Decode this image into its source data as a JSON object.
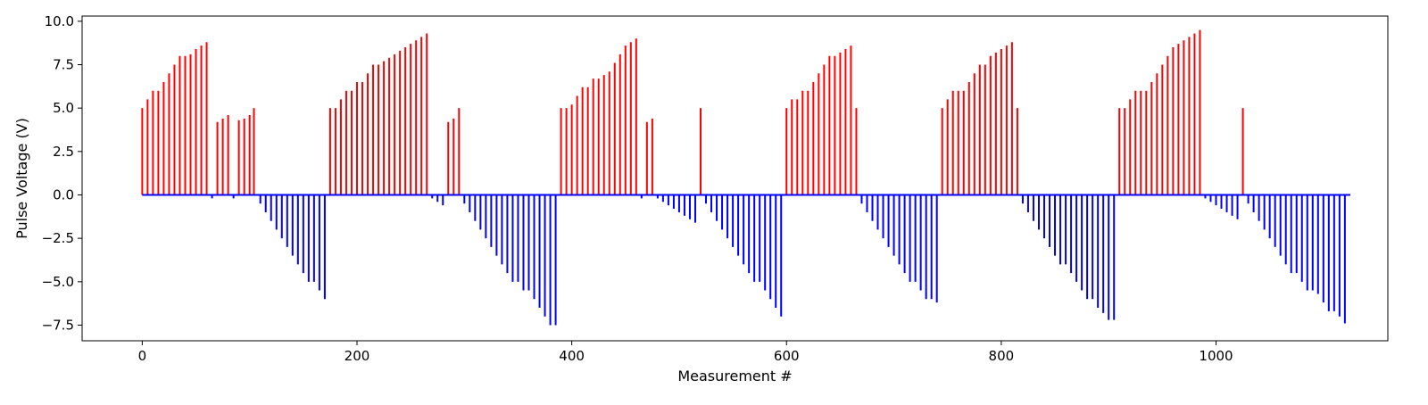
{
  "chart_data": {
    "type": "bar",
    "title": "",
    "xlabel": "Measurement #",
    "ylabel": "Pulse Voltage (V)",
    "xlim": [
      -56,
      1160
    ],
    "ylim": [
      -8.4,
      10.3
    ],
    "xticks": [
      0,
      200,
      400,
      600,
      800,
      1000
    ],
    "yticks": [
      -7.5,
      -5.0,
      -2.5,
      0.0,
      2.5,
      5.0,
      7.5,
      10.0
    ],
    "xtick_labels": [
      "0",
      "200",
      "400",
      "600",
      "800",
      "1000"
    ],
    "ytick_labels": [
      "−7.5",
      "−5.0",
      "−2.5",
      "0.0",
      "2.5",
      "5.0",
      "7.5",
      "10.0"
    ],
    "grid": false,
    "legend": "none",
    "colors": {
      "positive": "#ff0000",
      "negative": "#0000ff"
    },
    "baseline_x_range": [
      0,
      1125
    ],
    "series": [
      {
        "color": "#ff0000",
        "x": [
          0,
          5,
          10,
          15,
          20,
          25,
          30,
          35,
          40,
          45,
          50,
          55,
          60,
          70,
          75,
          80,
          90,
          95,
          100,
          104,
          175,
          180,
          185,
          190,
          195,
          200,
          205,
          210,
          215,
          220,
          225,
          230,
          235,
          240,
          245,
          250,
          255,
          260,
          265,
          285,
          290,
          295,
          390,
          395,
          400,
          405,
          410,
          415,
          420,
          425,
          430,
          435,
          440,
          445,
          450,
          455,
          460,
          470,
          475,
          520,
          600,
          605,
          610,
          615,
          620,
          625,
          630,
          635,
          640,
          645,
          650,
          655,
          660,
          665,
          745,
          750,
          755,
          760,
          765,
          770,
          775,
          780,
          785,
          790,
          795,
          800,
          805,
          810,
          815,
          910,
          915,
          920,
          925,
          930,
          935,
          940,
          945,
          950,
          955,
          960,
          965,
          970,
          975,
          980,
          985,
          1025
        ],
        "y": [
          5.0,
          5.5,
          6.0,
          6.0,
          6.5,
          7.0,
          7.5,
          8.0,
          8.0,
          8.1,
          8.4,
          8.6,
          8.8,
          4.2,
          4.4,
          4.6,
          4.3,
          4.4,
          4.6,
          5.0,
          5.0,
          5.0,
          5.5,
          6.0,
          6.0,
          6.5,
          6.5,
          7.0,
          7.5,
          7.5,
          7.7,
          7.9,
          8.1,
          8.3,
          8.5,
          8.7,
          8.9,
          9.1,
          9.3,
          4.2,
          4.4,
          5.0,
          5.0,
          5.0,
          5.2,
          5.7,
          6.2,
          6.2,
          6.7,
          6.7,
          6.9,
          7.1,
          7.6,
          8.1,
          8.6,
          8.8,
          9.0,
          4.2,
          4.4,
          5.0,
          5.0,
          5.5,
          5.5,
          6.0,
          6.0,
          6.5,
          7.0,
          7.5,
          8.0,
          8.0,
          8.2,
          8.4,
          8.6,
          5.0,
          5.0,
          5.5,
          6.0,
          6.0,
          6.0,
          6.5,
          7.0,
          7.5,
          7.5,
          8.0,
          8.2,
          8.4,
          8.6,
          8.8,
          5.0,
          5.0,
          5.0,
          5.5,
          6.0,
          6.0,
          6.0,
          6.5,
          7.0,
          7.5,
          8.0,
          8.5,
          8.7,
          8.9,
          9.1,
          9.3,
          9.5,
          5.0
        ]
      },
      {
        "color": "#0000ff",
        "x": [
          65,
          85,
          110,
          115,
          120,
          125,
          130,
          135,
          140,
          145,
          150,
          155,
          160,
          165,
          170,
          270,
          275,
          280,
          300,
          305,
          310,
          315,
          320,
          325,
          330,
          335,
          340,
          345,
          350,
          355,
          360,
          365,
          370,
          375,
          380,
          385,
          465,
          480,
          485,
          490,
          495,
          500,
          505,
          510,
          515,
          525,
          530,
          535,
          540,
          545,
          550,
          555,
          560,
          565,
          570,
          575,
          580,
          585,
          590,
          595,
          670,
          675,
          680,
          685,
          690,
          695,
          700,
          705,
          710,
          715,
          720,
          725,
          730,
          735,
          740,
          820,
          825,
          830,
          835,
          840,
          845,
          850,
          855,
          860,
          865,
          870,
          875,
          880,
          885,
          890,
          895,
          900,
          905,
          990,
          995,
          1000,
          1005,
          1010,
          1015,
          1020,
          1030,
          1035,
          1040,
          1045,
          1050,
          1055,
          1060,
          1065,
          1070,
          1075,
          1080,
          1085,
          1090,
          1095,
          1100,
          1105,
          1110,
          1115,
          1120
        ],
        "y": [
          -0.2,
          -0.2,
          -0.5,
          -1.0,
          -1.5,
          -2.0,
          -2.5,
          -3.0,
          -3.5,
          -4.0,
          -4.5,
          -5.0,
          -5.0,
          -5.5,
          -6.0,
          -0.2,
          -0.4,
          -0.6,
          -0.5,
          -1.0,
          -1.5,
          -2.0,
          -2.5,
          -3.0,
          -3.5,
          -4.0,
          -4.5,
          -5.0,
          -5.0,
          -5.5,
          -5.5,
          -6.0,
          -6.5,
          -7.0,
          -7.5,
          -7.5,
          -0.2,
          -0.2,
          -0.4,
          -0.6,
          -0.8,
          -1.0,
          -1.2,
          -1.4,
          -1.6,
          -0.5,
          -1.0,
          -1.5,
          -2.0,
          -2.5,
          -3.0,
          -3.5,
          -4.0,
          -4.5,
          -5.0,
          -5.0,
          -5.5,
          -6.0,
          -6.5,
          -7.0,
          -0.5,
          -1.0,
          -1.5,
          -2.0,
          -2.5,
          -3.0,
          -3.5,
          -4.0,
          -4.5,
          -5.0,
          -5.0,
          -5.5,
          -6.0,
          -6.0,
          -6.2,
          -0.5,
          -1.0,
          -1.5,
          -2.0,
          -2.5,
          -3.0,
          -3.5,
          -4.0,
          -4.0,
          -4.5,
          -5.0,
          -5.5,
          -6.0,
          -6.0,
          -6.5,
          -6.8,
          -7.2,
          -7.2,
          -0.2,
          -0.4,
          -0.6,
          -0.8,
          -1.0,
          -1.2,
          -1.4,
          -0.5,
          -1.0,
          -1.5,
          -2.0,
          -2.5,
          -3.0,
          -3.5,
          -4.0,
          -4.5,
          -4.5,
          -5.0,
          -5.5,
          -5.5,
          -5.7,
          -6.2,
          -6.7,
          -6.7,
          -7.0,
          -7.4
        ]
      }
    ]
  }
}
